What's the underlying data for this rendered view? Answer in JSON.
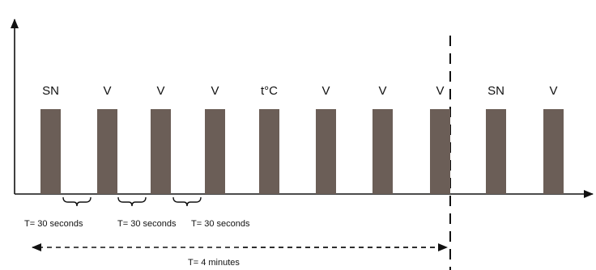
{
  "slots": [
    {
      "label": "SN"
    },
    {
      "label": "V"
    },
    {
      "label": "V"
    },
    {
      "label": "V"
    },
    {
      "label": "t°C"
    },
    {
      "label": "V"
    },
    {
      "label": "V"
    },
    {
      "label": "V"
    },
    {
      "label": "SN"
    },
    {
      "label": "V"
    }
  ],
  "intervals": [
    {
      "label": "T= 30 seconds"
    },
    {
      "label": "T= 30 seconds"
    },
    {
      "label": "T= 30 seconds"
    }
  ],
  "total": {
    "label": "T= 4 minutes"
  },
  "colors": {
    "bar": "#6b5e57",
    "line": "#111111"
  }
}
